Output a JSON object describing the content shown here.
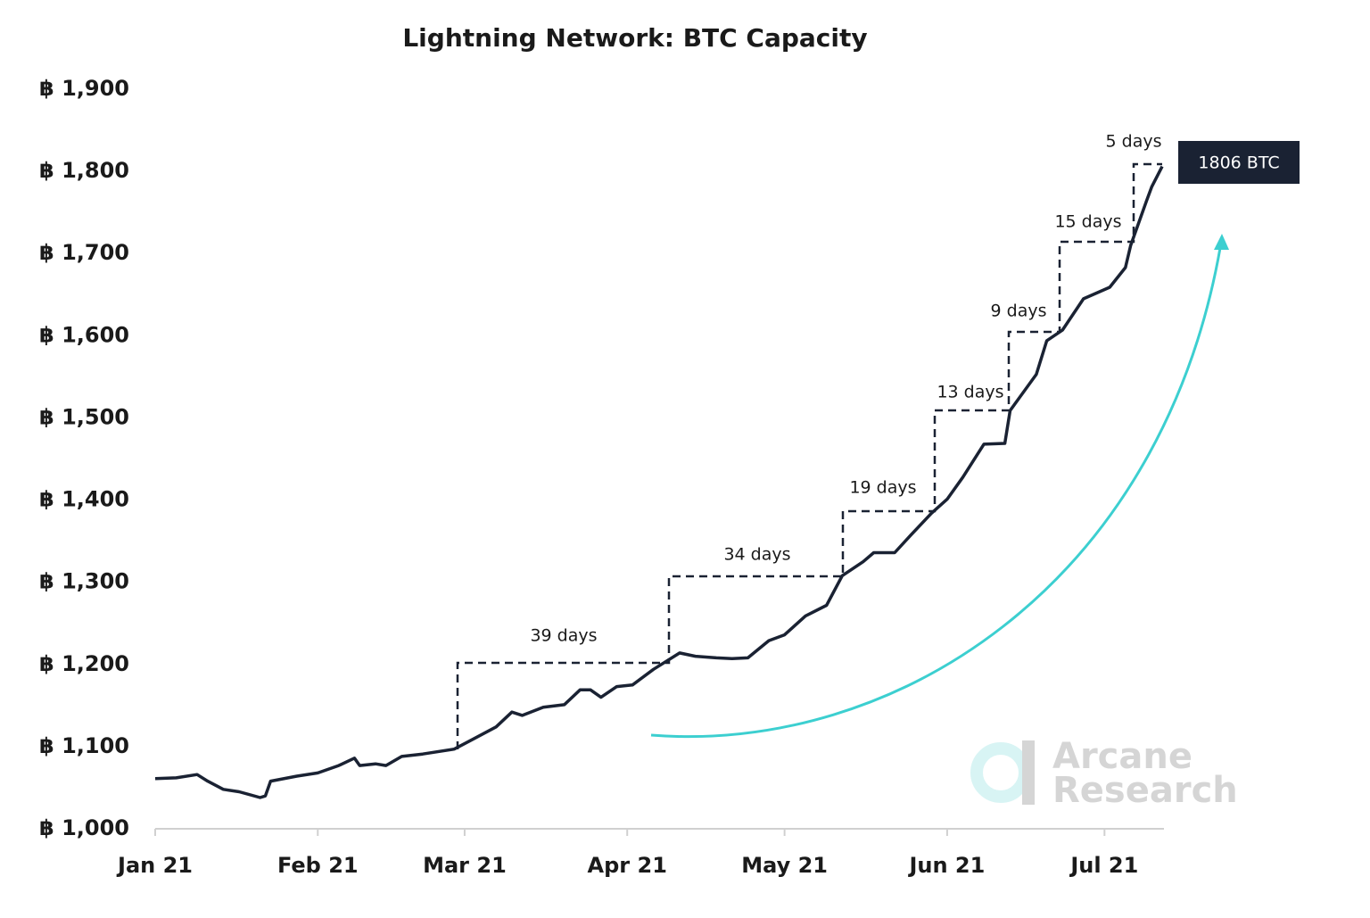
{
  "chart_data": {
    "type": "line",
    "title": "Lightning Network: BTC Capacity",
    "x": [
      0,
      4,
      8,
      10,
      13,
      16,
      20,
      21,
      22,
      27,
      31,
      35,
      38,
      39,
      42,
      44,
      47,
      51,
      57,
      60,
      65,
      68,
      70,
      74,
      78,
      81,
      83,
      85,
      88,
      91,
      95,
      100,
      103,
      107,
      110,
      113,
      117,
      120,
      124,
      128,
      131,
      135,
      137,
      141,
      144,
      148,
      151,
      154,
      158,
      162,
      163,
      168,
      170,
      173,
      177,
      182,
      185,
      186,
      189,
      190,
      192
    ],
    "values": [
      1061,
      1062,
      1066,
      1058,
      1048,
      1045,
      1038,
      1040,
      1058,
      1064,
      1068,
      1077,
      1086,
      1077,
      1079,
      1077,
      1088,
      1091,
      1097,
      1107,
      1124,
      1142,
      1138,
      1148,
      1151,
      1169,
      1169,
      1160,
      1173,
      1175,
      1194,
      1214,
      1210,
      1208,
      1207,
      1208,
      1229,
      1236,
      1259,
      1272,
      1308,
      1325,
      1336,
      1336,
      1357,
      1384,
      1401,
      1428,
      1468,
      1469,
      1509,
      1553,
      1594,
      1607,
      1645,
      1659,
      1683,
      1710,
      1764,
      1781,
      1806
    ],
    "color": "#1a2233",
    "xlim": [
      0,
      192
    ],
    "xticks": [
      {
        "value": 0,
        "label": "Jan 21"
      },
      {
        "value": 31,
        "label": "Feb 21"
      },
      {
        "value": 59,
        "label": "Mar 21"
      },
      {
        "value": 90,
        "label": "Apr 21"
      },
      {
        "value": 120,
        "label": "May 21"
      },
      {
        "value": 151,
        "label": "Jun 21"
      },
      {
        "value": 181,
        "label": "Jul 21"
      }
    ],
    "ylim": [
      1000,
      1900
    ],
    "yticks": [
      {
        "value": 1000,
        "label": "฿ 1,000"
      },
      {
        "value": 1100,
        "label": "฿ 1,100"
      },
      {
        "value": 1200,
        "label": "฿ 1,200"
      },
      {
        "value": 1300,
        "label": "฿ 1,300"
      },
      {
        "value": 1400,
        "label": "฿ 1,400"
      },
      {
        "value": 1500,
        "label": "฿ 1,500"
      },
      {
        "value": 1600,
        "label": "฿ 1,600"
      },
      {
        "value": 1700,
        "label": "฿ 1,700"
      },
      {
        "value": 1800,
        "label": "฿ 1,800"
      },
      {
        "value": 1900,
        "label": "฿ 1,900"
      }
    ],
    "grid": false,
    "annotations": [
      "39 days",
      "34 days",
      "19 days",
      "13 days",
      "9 days",
      "15 days",
      "5 days"
    ],
    "callout": "1806 BTC",
    "watermark": [
      "Arcane",
      "Research"
    ]
  }
}
